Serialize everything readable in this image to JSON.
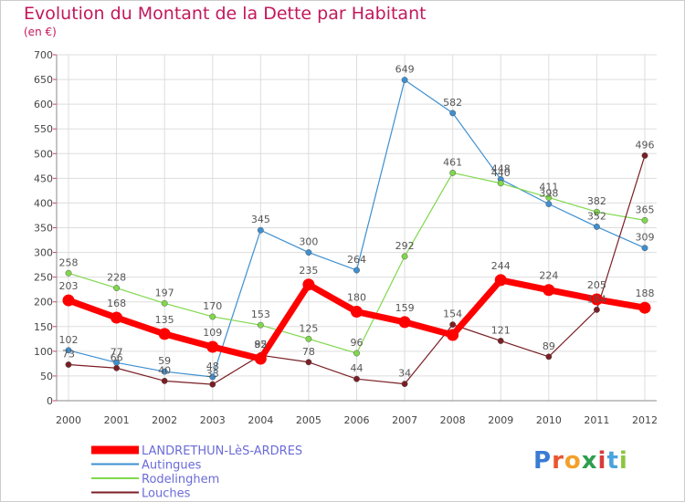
{
  "title": "Evolution du Montant de la Dette par Habitant",
  "subtitle": "(en €)",
  "logo": {
    "text": "Proxiti",
    "letter_colors": [
      "#3a7bd5",
      "#e8562f",
      "#f2a12b",
      "#2f9f4f",
      "#d93b3b",
      "#4aa3df",
      "#8cc63f"
    ]
  },
  "chart_data": {
    "type": "line",
    "x": [
      "2000",
      "2001",
      "2002",
      "2003",
      "2004",
      "2005",
      "2006",
      "2007",
      "2008",
      "2009",
      "2010",
      "2011",
      "2012"
    ],
    "ylim": [
      0,
      700
    ],
    "yticks": [
      0,
      50,
      100,
      150,
      200,
      250,
      300,
      350,
      400,
      450,
      500,
      550,
      600,
      650,
      700
    ],
    "grid": true,
    "legend_position": "bottom-left",
    "series": [
      {
        "name": "LANDRETHUN-LèS-ARDRES",
        "color": "#ff0000",
        "values": [
          203,
          168,
          135,
          109,
          85,
          235,
          180,
          159,
          133,
          244,
          224,
          205,
          188
        ],
        "labels": [
          "203",
          "168",
          "135",
          "109",
          "85",
          "235",
          "180",
          "159",
          "",
          "244",
          "224",
          "205",
          "188"
        ]
      },
      {
        "name": "Autingues",
        "color": "#3d8fd0",
        "values": [
          102,
          77,
          59,
          48,
          345,
          300,
          264,
          649,
          582,
          448,
          398,
          352,
          309
        ],
        "labels": [
          "102",
          "77",
          "59",
          "48",
          "345",
          "300",
          "264",
          "649",
          "582",
          "448",
          "398",
          "352",
          "309"
        ]
      },
      {
        "name": "Rodelinghem",
        "color": "#7fd84b",
        "values": [
          258,
          228,
          197,
          170,
          153,
          125,
          96,
          292,
          461,
          440,
          411,
          382,
          365
        ],
        "labels": [
          "258",
          "228",
          "197",
          "170",
          "153",
          "125",
          "96",
          "292",
          "461",
          "440",
          "411",
          "382",
          "365"
        ]
      },
      {
        "name": "Louches",
        "color": "#7a1f24",
        "values": [
          73,
          66,
          40,
          33,
          92,
          78,
          44,
          34,
          154,
          121,
          89,
          184,
          496
        ],
        "labels": [
          "73",
          "66",
          "40",
          "33",
          "92",
          "78",
          "44",
          "34",
          "154",
          "121",
          "89",
          "184",
          "496"
        ]
      }
    ]
  }
}
